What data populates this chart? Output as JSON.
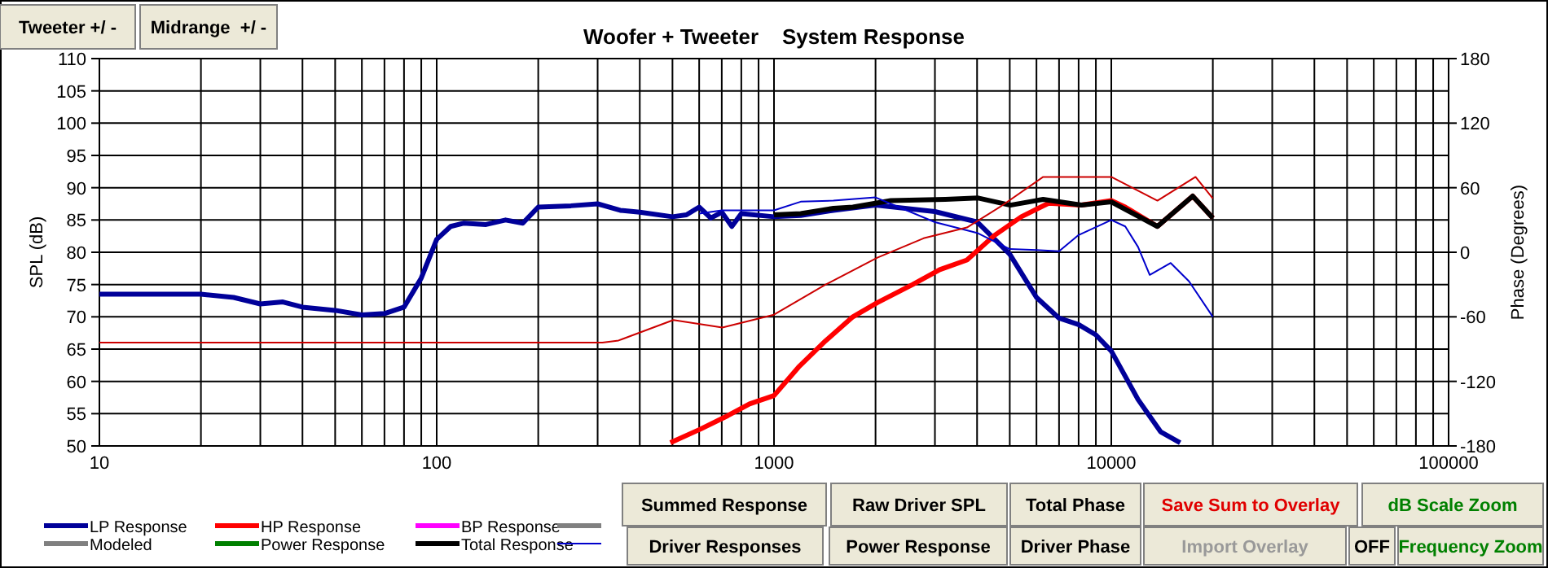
{
  "chart_data": {
    "type": "line",
    "title": "Woofer + Tweeter    System Response",
    "ylabel": "SPL (dB)",
    "y2label": "Phase (Degrees)",
    "log": "x",
    "grid": true,
    "legend": "bottom left",
    "line_style": "solid",
    "xlim": [
      10,
      100000
    ],
    "xticks": [
      10,
      {
        "value": 20,
        "label": null
      },
      {
        "value": 30,
        "label": null
      },
      {
        "value": 40,
        "label": null
      },
      {
        "value": 50,
        "label": null
      },
      {
        "value": 60,
        "label": null
      },
      {
        "value": 70,
        "label": null
      },
      {
        "value": 80,
        "label": null
      },
      {
        "value": 90,
        "label": null
      },
      100,
      {
        "value": 200,
        "label": null
      },
      {
        "value": 300,
        "label": null
      },
      {
        "value": 400,
        "label": null
      },
      {
        "value": 500,
        "label": null
      },
      {
        "value": 600,
        "label": null
      },
      {
        "value": 700,
        "label": null
      },
      {
        "value": 800,
        "label": null
      },
      {
        "value": 900,
        "label": null
      },
      1000,
      {
        "value": 2000,
        "label": null
      },
      {
        "value": 3000,
        "label": null
      },
      {
        "value": 4000,
        "label": null
      },
      {
        "value": 5000,
        "label": null
      },
      {
        "value": 6000,
        "label": null
      },
      {
        "value": 7000,
        "label": null
      },
      {
        "value": 8000,
        "label": null
      },
      {
        "value": 9000,
        "label": null
      },
      10000,
      {
        "value": 20000,
        "label": null
      },
      {
        "value": 30000,
        "label": null
      },
      {
        "value": 40000,
        "label": null
      },
      {
        "value": 50000,
        "label": null
      },
      {
        "value": 60000,
        "label": null
      },
      {
        "value": 70000,
        "label": null
      },
      {
        "value": 80000,
        "label": null
      },
      {
        "value": 90000,
        "label": null
      },
      100000
    ],
    "ylim": [
      50,
      110
    ],
    "yticks": [
      50,
      55,
      60,
      65,
      70,
      75,
      80,
      85,
      90,
      95,
      100,
      105,
      110
    ],
    "y2lim": [
      -180,
      180
    ],
    "y2ticks": [
      -180,
      -120,
      -60,
      0,
      60,
      120,
      180
    ],
    "series": [
      {
        "name": "LP Response",
        "color": "#000099",
        "x": [
          10,
          20,
          25,
          30,
          35,
          40,
          50,
          60,
          70,
          80,
          90,
          100,
          110,
          120,
          140,
          160,
          180,
          200,
          250,
          300,
          350,
          400,
          500,
          550,
          600,
          650,
          700,
          750,
          800,
          1000,
          1200,
          1500,
          2000,
          3000,
          4000,
          5000,
          6000,
          7000,
          8000,
          9000,
          10000,
          12000,
          14000,
          16000
        ],
        "values": [
          73.5,
          73.5,
          73,
          72,
          72.3,
          71.5,
          71,
          70.3,
          70.5,
          71.5,
          76,
          82,
          84,
          84.5,
          84.3,
          85,
          84.5,
          87,
          87.2,
          87.5,
          86.5,
          86.2,
          85.5,
          85.8,
          87,
          85.3,
          86.2,
          84,
          86,
          85.5,
          85.7,
          86.5,
          87.3,
          86.3,
          84.7,
          79.7,
          73,
          69.8,
          68.8,
          67.2,
          64.7,
          57.2,
          52.2,
          50.5
        ]
      },
      {
        "name": "HP Response",
        "color": "#ff0000",
        "x": [
          493,
          605,
          730,
          846,
          1000,
          1182,
          1423,
          1713,
          2025,
          2577,
          3100,
          3733,
          4500,
          5410,
          6518,
          8150,
          10000,
          11000,
          13700,
          17430,
          20000
        ],
        "values": [
          50.5,
          52.6,
          54.7,
          56.5,
          57.8,
          62.2,
          66.3,
          70,
          72.2,
          75,
          77.3,
          78.8,
          82.6,
          85.5,
          87.6,
          87.3,
          88,
          87,
          84,
          88.7,
          85.3
        ]
      },
      {
        "name": "BP Response",
        "color": "#ff00ff"
      },
      {
        "color": "#808080"
      },
      {
        "name": "Modeled",
        "color": "#808080"
      },
      {
        "name": "Power Response",
        "color": "#008000"
      },
      {
        "name": "Total Response",
        "color": "#000000",
        "x": [
          1000,
          1200,
          1500,
          1713,
          2220,
          3220,
          4030,
          5020,
          6280,
          8150,
          10000,
          13700,
          17430,
          20000
        ],
        "values": [
          85.8,
          86,
          86.8,
          87,
          88,
          88.2,
          88.4,
          87.3,
          88.2,
          87.3,
          87.8,
          84,
          88.7,
          85.3
        ]
      },
      {
        "color": "#0000cc",
        "axis": "y2",
        "x": [
          600,
          700,
          800,
          1000,
          1200,
          1500,
          2000,
          3000,
          4000,
          5000,
          6000,
          7000,
          8000,
          10000,
          11000,
          12000,
          13000,
          15000,
          17000,
          20000
        ],
        "values": [
          36,
          39,
          39,
          39,
          47,
          48,
          51,
          28,
          18,
          3,
          2,
          1,
          16,
          30,
          24,
          5,
          -21,
          -10,
          -27,
          -60
        ]
      },
      {
        "color": "#cc0000",
        "axis": "y2",
        "x": [
          10,
          310,
          346,
          503,
          703,
          1000,
          1423,
          2025,
          2776,
          3733,
          4670,
          6280,
          8150,
          10000,
          13700,
          17770,
          20000
        ],
        "values": [
          -84,
          -84,
          -82,
          -63,
          -70,
          -58,
          -30,
          -5,
          13,
          23,
          42,
          70,
          70,
          70,
          48,
          70,
          50
        ]
      }
    ],
    "annotations": [
      "Tweeter +/ -",
      "Midrange  +/ -",
      "Summed Response",
      "Raw Driver SPL",
      "Total Phase",
      "Save Sum to Overlay",
      "dB Scale Zoom",
      "Driver Responses",
      "Power Response",
      "Driver Phase",
      "Import Overlay",
      "OFF",
      "Frequency Zoom"
    ]
  }
}
